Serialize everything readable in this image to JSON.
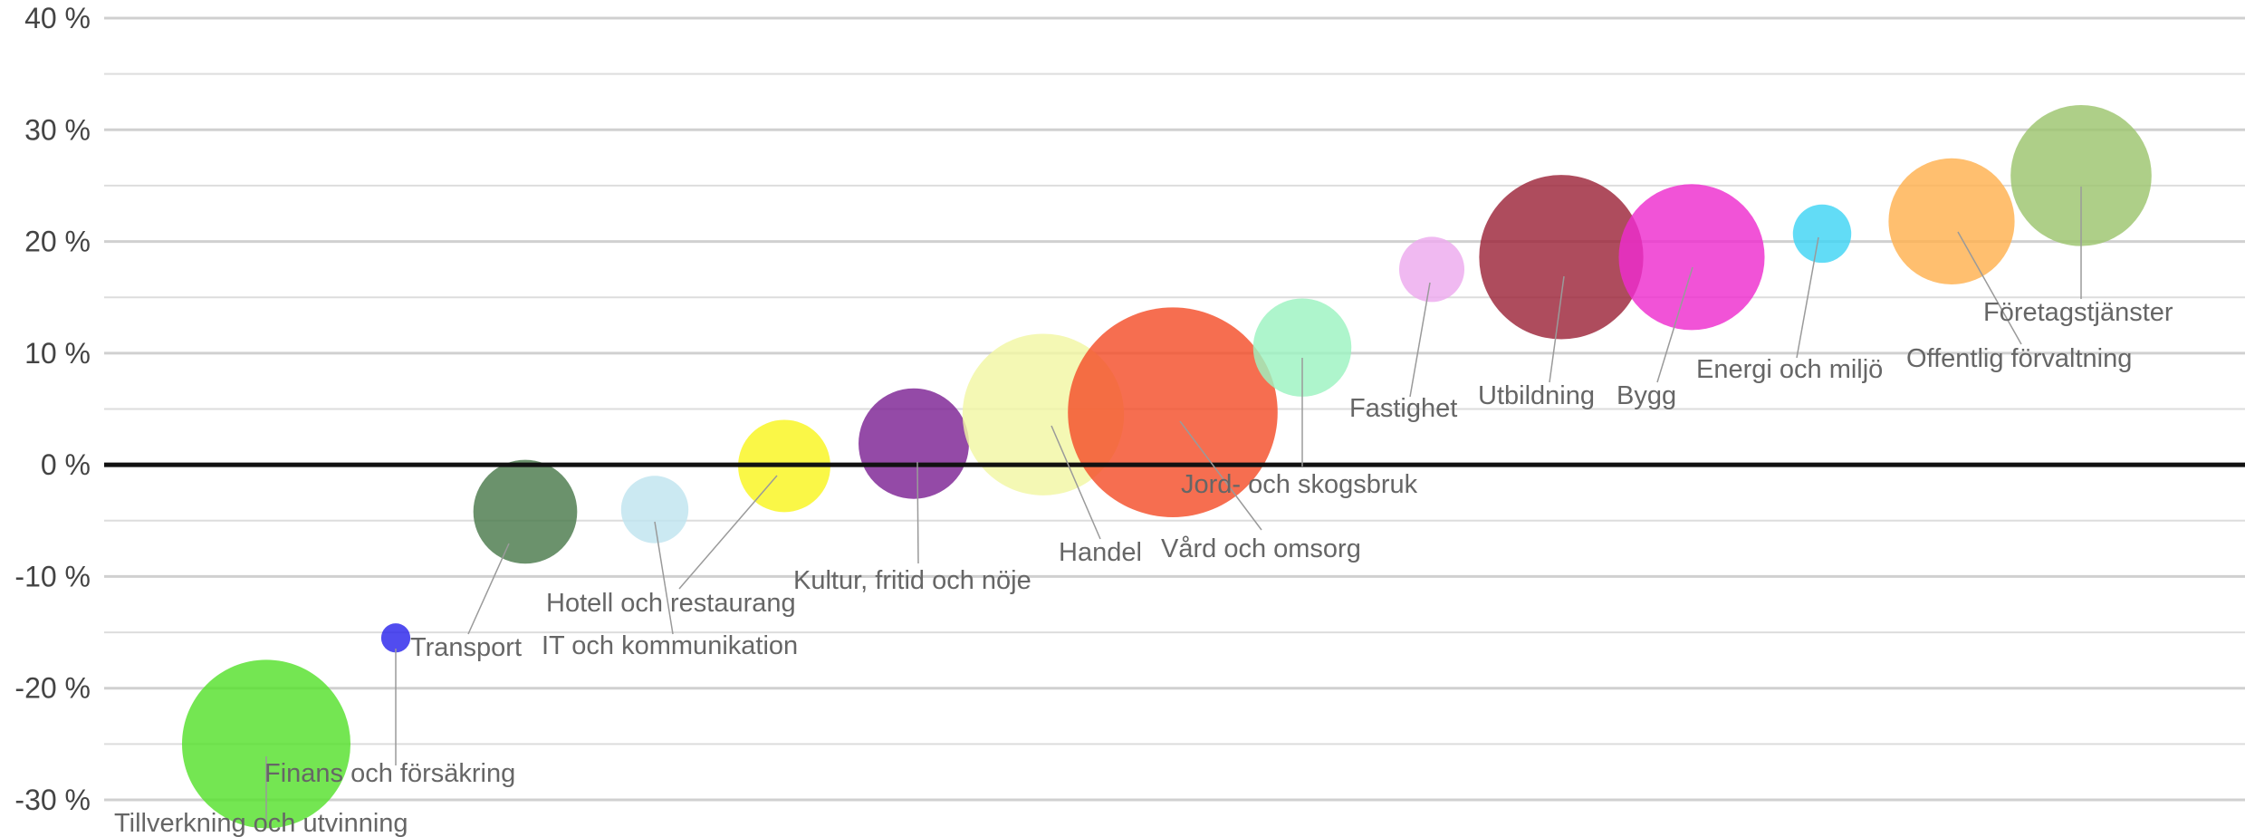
{
  "chart_data": {
    "type": "bubble",
    "y_unit": "%",
    "ylim": [
      -30,
      40
    ],
    "y_ticks": [
      40,
      30,
      20,
      10,
      0,
      -10,
      -20,
      -30
    ],
    "y_tick_labels": [
      "40 %",
      "30 %",
      "20 %",
      "10 %",
      "0 %",
      "-10 %",
      "-20 %",
      "-30 %"
    ],
    "grid": true,
    "legend": "none",
    "points": [
      {
        "name": "Tillverkning och utvinning",
        "y": -25.0,
        "size": 100,
        "color": "#55e02c"
      },
      {
        "name": "Finans och försäkring",
        "y": -15.5,
        "size": 3,
        "color": "#2b25ec"
      },
      {
        "name": "Transport",
        "y": -4.2,
        "size": 38,
        "color": "#4a7a4c"
      },
      {
        "name": "IT och kommunikation",
        "y": -4.0,
        "size": 16,
        "color": "#bfe4ef"
      },
      {
        "name": "Hotell och restaurang",
        "y": -0.1,
        "size": 30,
        "color": "#f9f51e"
      },
      {
        "name": "Kultur, fritid och nöje",
        "y": 1.9,
        "size": 43,
        "color": "#7d2294"
      },
      {
        "name": "Handel",
        "y": 4.5,
        "size": 92,
        "color": "#f1f7a4"
      },
      {
        "name": "Vård och omsorg",
        "y": 4.7,
        "size": 155,
        "color": "#f44e2a"
      },
      {
        "name": "Jord- och skogsbruk",
        "y": 10.5,
        "size": 34,
        "color": "#9cf3c1"
      },
      {
        "name": "Fastighet",
        "y": 17.5,
        "size": 15,
        "color": "#edaaee"
      },
      {
        "name": "Utbildning",
        "y": 18.6,
        "size": 95,
        "color": "#9c2539"
      },
      {
        "name": "Bygg",
        "y": 18.6,
        "size": 75,
        "color": "#ee2dce"
      },
      {
        "name": "Energi och miljö",
        "y": 20.7,
        "size": 12,
        "color": "#3fd4f4"
      },
      {
        "name": "Offentlig förvaltning",
        "y": 21.8,
        "size": 56,
        "color": "#ffb14f"
      },
      {
        "name": "Företagstjänster",
        "y": 25.9,
        "size": 70,
        "color": "#9cc46e"
      }
    ]
  }
}
